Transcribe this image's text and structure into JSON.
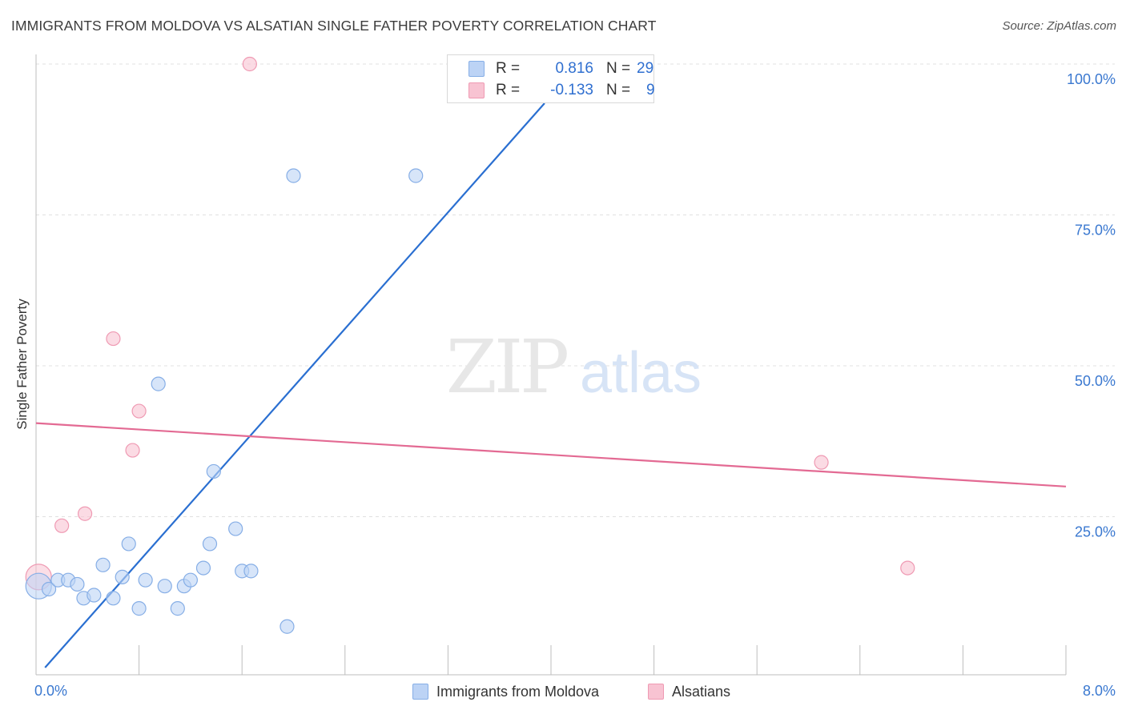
{
  "title": "IMMIGRANTS FROM MOLDOVA VS ALSATIAN SINGLE FATHER POVERTY CORRELATION CHART",
  "source": "Source: ZipAtlas.com",
  "watermark": {
    "zip": "ZIP",
    "atlas": "atlas"
  },
  "colors": {
    "blue_fill": "#bcd3f5",
    "blue_stroke": "#86aee6",
    "blue_line": "#2a6fd1",
    "pink_fill": "#f8c3d2",
    "pink_stroke": "#ef9ab3",
    "pink_line": "#e36a93",
    "axis_text": "#3a78d0",
    "grid": "#e0e0e0"
  },
  "legend_stats": [
    {
      "r_label": "R =",
      "r_value": "0.816",
      "n_label": "N =",
      "n_value": "29",
      "color": "blue"
    },
    {
      "r_label": "R =",
      "r_value": "-0.133",
      "n_label": "N =",
      "n_value": "9",
      "color": "pink"
    }
  ],
  "chart_data": {
    "type": "scatter",
    "title": "IMMIGRANTS FROM MOLDOVA VS ALSATIAN SINGLE FATHER POVERTY CORRELATION CHART",
    "xlabel": "",
    "ylabel": "Single Father Poverty",
    "xlim": [
      0,
      8
    ],
    "ylim": [
      0,
      100
    ],
    "x_tick_labels": [
      "0.0%",
      "8.0%"
    ],
    "y_ticks": [
      25,
      50,
      75,
      100
    ],
    "y_tick_labels": [
      "25.0%",
      "50.0%",
      "75.0%",
      "100.0%"
    ],
    "grid": true,
    "legend_position": "bottom",
    "series": [
      {
        "name": "Immigrants from Moldova",
        "color": "blue",
        "points": [
          {
            "x": 0.02,
            "y": 13.5,
            "big": true
          },
          {
            "x": 0.1,
            "y": 13.0
          },
          {
            "x": 0.17,
            "y": 14.5
          },
          {
            "x": 0.25,
            "y": 14.5
          },
          {
            "x": 0.32,
            "y": 13.8
          },
          {
            "x": 0.37,
            "y": 11.5
          },
          {
            "x": 0.45,
            "y": 12.0
          },
          {
            "x": 0.52,
            "y": 17.0
          },
          {
            "x": 0.6,
            "y": 11.5
          },
          {
            "x": 0.67,
            "y": 15.0
          },
          {
            "x": 0.72,
            "y": 20.5
          },
          {
            "x": 0.8,
            "y": 9.8
          },
          {
            "x": 0.85,
            "y": 14.5
          },
          {
            "x": 0.95,
            "y": 47.0
          },
          {
            "x": 1.0,
            "y": 13.5
          },
          {
            "x": 1.1,
            "y": 9.8
          },
          {
            "x": 1.15,
            "y": 13.5
          },
          {
            "x": 1.2,
            "y": 14.5
          },
          {
            "x": 1.3,
            "y": 16.5
          },
          {
            "x": 1.35,
            "y": 20.5
          },
          {
            "x": 1.38,
            "y": 32.5
          },
          {
            "x": 1.55,
            "y": 23.0
          },
          {
            "x": 1.6,
            "y": 16.0
          },
          {
            "x": 1.67,
            "y": 16.0
          },
          {
            "x": 1.95,
            "y": 6.8
          },
          {
            "x": 2.0,
            "y": 81.5
          },
          {
            "x": 2.95,
            "y": 81.5
          },
          {
            "x": 3.3,
            "y": 100
          },
          {
            "x": 3.72,
            "y": 100
          }
        ],
        "trend": {
          "x1": 0.07,
          "y1": 0,
          "x2": 3.95,
          "y2": 93.5
        }
      },
      {
        "name": "Alsatians",
        "color": "pink",
        "points": [
          {
            "x": 0.02,
            "y": 15.0,
            "big": true
          },
          {
            "x": 0.2,
            "y": 23.5
          },
          {
            "x": 0.38,
            "y": 25.5
          },
          {
            "x": 0.6,
            "y": 54.5
          },
          {
            "x": 0.75,
            "y": 36.0
          },
          {
            "x": 0.8,
            "y": 42.5
          },
          {
            "x": 1.66,
            "y": 100
          },
          {
            "x": 6.1,
            "y": 34.0
          },
          {
            "x": 6.77,
            "y": 16.5
          }
        ],
        "trend": {
          "x1": 0,
          "y1": 40.5,
          "x2": 8,
          "y2": 30.0
        }
      }
    ]
  }
}
